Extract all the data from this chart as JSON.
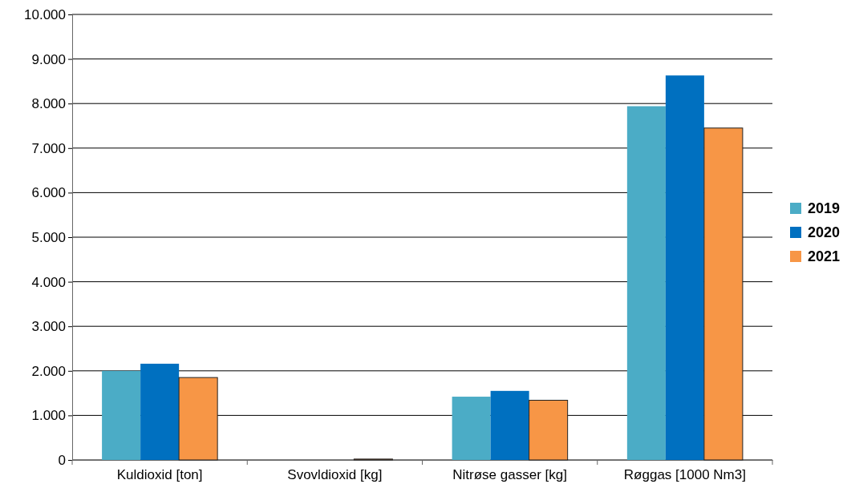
{
  "chart_data": {
    "type": "bar",
    "categories": [
      "Kuldioxid [ton]",
      "Svovldioxid [kg]",
      "Nitrøse gasser [kg]",
      "Røggas [1000 Nm3]"
    ],
    "series": [
      {
        "name": "2019",
        "color": "#4bacc6",
        "values": [
          2000,
          0,
          1420,
          7940
        ]
      },
      {
        "name": "2020",
        "color": "#0070c0",
        "values": [
          2160,
          0,
          1550,
          8630
        ]
      },
      {
        "name": "2021",
        "color": "#f79646",
        "values": [
          1850,
          20,
          1340,
          7450
        ]
      }
    ],
    "ylim": [
      0,
      10000
    ],
    "yticks": [
      {
        "value": 0,
        "label": "0"
      },
      {
        "value": 1000,
        "label": "1.000"
      },
      {
        "value": 2000,
        "label": "2.000"
      },
      {
        "value": 3000,
        "label": "3.000"
      },
      {
        "value": 4000,
        "label": "4.000"
      },
      {
        "value": 5000,
        "label": "5.000"
      },
      {
        "value": 6000,
        "label": "6.000"
      },
      {
        "value": 7000,
        "label": "7.000"
      },
      {
        "value": 8000,
        "label": "8.000"
      },
      {
        "value": 9000,
        "label": "9.000"
      },
      {
        "value": 10000,
        "label": "10.000"
      }
    ],
    "grid": "y",
    "legend": "right"
  }
}
